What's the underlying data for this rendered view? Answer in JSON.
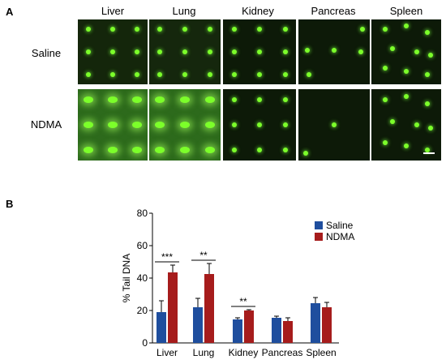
{
  "panel_a": {
    "letter": "A",
    "columns": [
      "Liver",
      "Lung",
      "Kidney",
      "Pancreas",
      "Spleen"
    ],
    "rows": [
      "Saline",
      "NDMA"
    ]
  },
  "panel_b": {
    "letter": "B"
  },
  "colors": {
    "saline": "#1f4e9e",
    "ndma": "#a61c1c",
    "comet": "#7cff2a"
  },
  "chart_data": {
    "type": "bar",
    "categories": [
      "Liver",
      "Lung",
      "Kidney",
      "Pancreas",
      "Spleen"
    ],
    "series": [
      {
        "name": "Saline",
        "values": [
          19,
          22,
          14.5,
          15.5,
          24.5
        ],
        "errors": [
          7,
          5.5,
          1,
          1,
          3.5
        ]
      },
      {
        "name": "NDMA",
        "values": [
          43.5,
          42.5,
          20,
          13.5,
          22
        ],
        "errors": [
          4.5,
          6.5,
          0.5,
          2,
          3
        ]
      }
    ],
    "ylabel": "% Tail DNA",
    "ylim": [
      0,
      80
    ],
    "yticks": [
      0,
      20,
      40,
      60,
      80
    ],
    "legend": "top-right",
    "significance": [
      {
        "category": "Liver",
        "label": "***"
      },
      {
        "category": "Lung",
        "label": "**"
      },
      {
        "category": "Kidney",
        "label": "**"
      }
    ]
  }
}
